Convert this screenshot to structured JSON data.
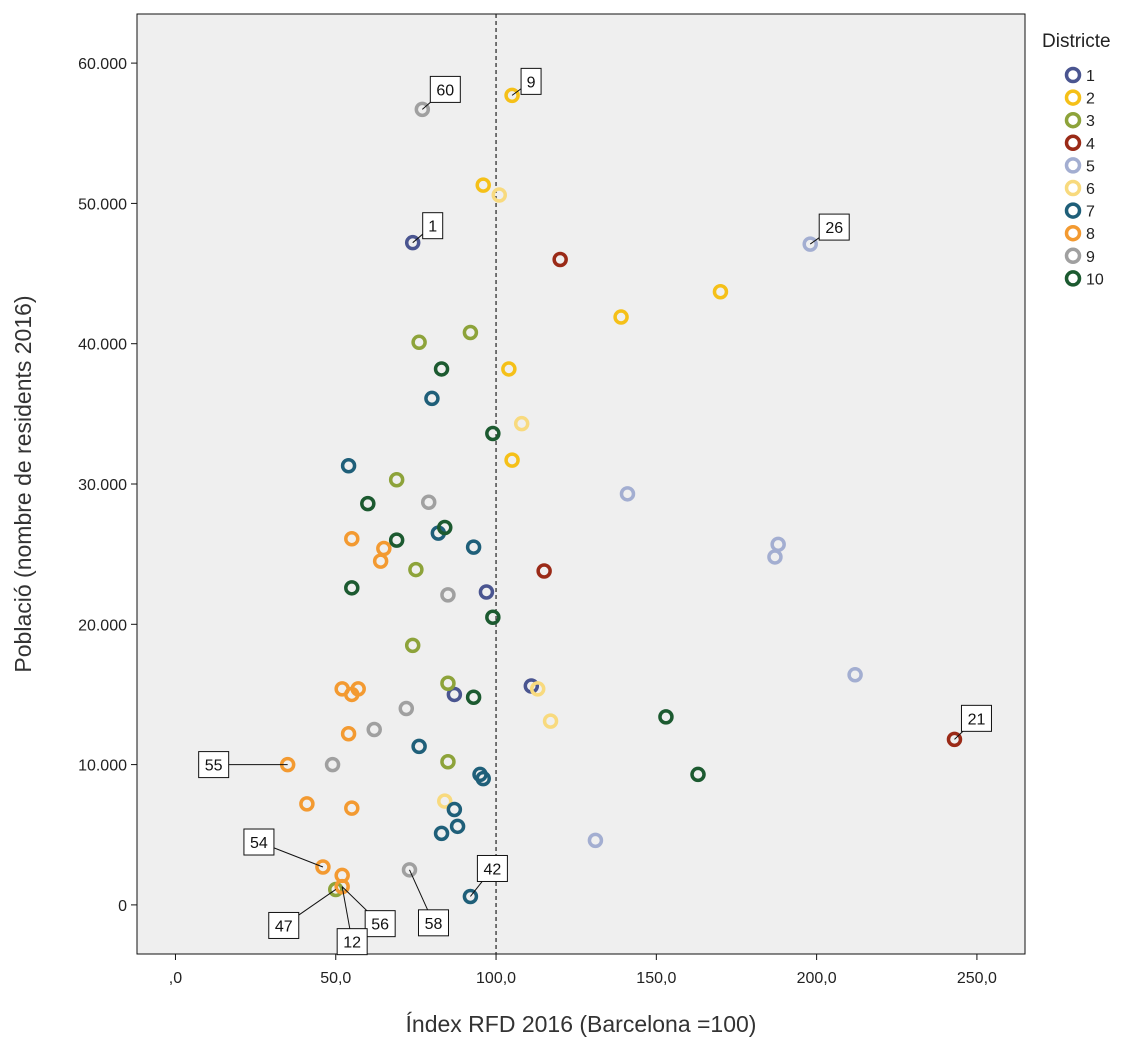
{
  "chart_data": {
    "type": "scatter",
    "xlabel": "Índex RFD 2016 (Barcelona =100)",
    "ylabel": "Població (nombre de residents 2016)",
    "xlim": [
      -12,
      265
    ],
    "ylim": [
      -3500,
      63500
    ],
    "xticks": [
      0,
      50,
      100,
      150,
      200,
      250
    ],
    "xtick_labels": [
      ",0",
      "50,0",
      "100,0",
      "150,0",
      "200,0",
      "250,0"
    ],
    "yticks": [
      0,
      10000,
      20000,
      30000,
      40000,
      50000,
      60000
    ],
    "ytick_labels": [
      "0",
      "10.000",
      "20.000",
      "30.000",
      "40.000",
      "50.000",
      "60.000"
    ],
    "reference_line": {
      "x": 100,
      "style": "dashed"
    },
    "grid": false,
    "background": "#efefef",
    "legend": {
      "title": "Districte",
      "position": "right",
      "marker": "hollow-circle"
    },
    "series": [
      {
        "name": "1",
        "color": "#4a5590",
        "points": [
          [
            74,
            47200
          ],
          [
            97,
            22300
          ],
          [
            87,
            15000
          ],
          [
            111,
            15600
          ]
        ]
      },
      {
        "name": "2",
        "color": "#f5c018",
        "points": [
          [
            105,
            57700
          ],
          [
            96,
            51300
          ],
          [
            170,
            43700
          ],
          [
            139,
            41900
          ],
          [
            104,
            38200
          ],
          [
            105,
            31700
          ]
        ]
      },
      {
        "name": "3",
        "color": "#8da33a",
        "points": [
          [
            76,
            40100
          ],
          [
            92,
            40800
          ],
          [
            69,
            30300
          ],
          [
            75,
            23900
          ],
          [
            74,
            18500
          ],
          [
            85,
            15800
          ],
          [
            85,
            10200
          ],
          [
            50,
            1100
          ]
        ]
      },
      {
        "name": "4",
        "color": "#9a2a17",
        "points": [
          [
            120,
            46000
          ],
          [
            115,
            23800
          ],
          [
            243,
            11800
          ]
        ]
      },
      {
        "name": "5",
        "color": "#a3aed1",
        "points": [
          [
            198,
            47100
          ],
          [
            141,
            29300
          ],
          [
            188,
            25700
          ],
          [
            187,
            24800
          ],
          [
            212,
            16400
          ],
          [
            131,
            4600
          ]
        ]
      },
      {
        "name": "6",
        "color": "#f8da7e",
        "points": [
          [
            101,
            50600
          ],
          [
            108,
            34300
          ],
          [
            113,
            15400
          ],
          [
            117,
            13100
          ],
          [
            84,
            7400
          ]
        ]
      },
      {
        "name": "7",
        "color": "#1f5f79",
        "points": [
          [
            80,
            36100
          ],
          [
            54,
            31300
          ],
          [
            82,
            26500
          ],
          [
            93,
            25500
          ],
          [
            76,
            11300
          ],
          [
            95,
            9300
          ],
          [
            96,
            9000
          ],
          [
            87,
            6800
          ],
          [
            88,
            5600
          ],
          [
            83,
            5100
          ],
          [
            92,
            600
          ]
        ]
      },
      {
        "name": "8",
        "color": "#f39a31",
        "points": [
          [
            55,
            26100
          ],
          [
            65,
            25400
          ],
          [
            64,
            24500
          ],
          [
            52,
            15400
          ],
          [
            57,
            15400
          ],
          [
            55,
            15000
          ],
          [
            54,
            12200
          ],
          [
            35,
            10000
          ],
          [
            41,
            7200
          ],
          [
            55,
            6900
          ],
          [
            46,
            2700
          ],
          [
            52,
            2100
          ],
          [
            52,
            1300
          ]
        ]
      },
      {
        "name": "9",
        "color": "#a0a0a0",
        "points": [
          [
            77,
            56700
          ],
          [
            79,
            28700
          ],
          [
            85,
            22100
          ],
          [
            72,
            14000
          ],
          [
            62,
            12500
          ],
          [
            49,
            10000
          ],
          [
            73,
            2500
          ]
        ]
      },
      {
        "name": "10",
        "color": "#1c5a30",
        "points": [
          [
            83,
            38200
          ],
          [
            99,
            33600
          ],
          [
            60,
            28600
          ],
          [
            84,
            26900
          ],
          [
            69,
            26000
          ],
          [
            55,
            22600
          ],
          [
            99,
            20500
          ],
          [
            93,
            14800
          ],
          [
            153,
            13400
          ],
          [
            163,
            9300
          ]
        ]
      }
    ],
    "annotations": [
      {
        "label": "60",
        "point": [
          77,
          56700
        ]
      },
      {
        "label": "9",
        "point": [
          105,
          57700
        ]
      },
      {
        "label": "1",
        "point": [
          74,
          47200
        ]
      },
      {
        "label": "26",
        "point": [
          198,
          47100
        ]
      },
      {
        "label": "21",
        "point": [
          243,
          11800
        ]
      },
      {
        "label": "55",
        "point": [
          35,
          10000
        ]
      },
      {
        "label": "54",
        "point": [
          46,
          2700
        ]
      },
      {
        "label": "42",
        "point": [
          92,
          600
        ]
      },
      {
        "label": "47",
        "point": [
          50,
          1100
        ]
      },
      {
        "label": "56",
        "point": [
          52,
          1300
        ]
      },
      {
        "label": "12",
        "point": [
          52,
          1300
        ]
      },
      {
        "label": "58",
        "point": [
          73,
          2500
        ]
      }
    ]
  }
}
